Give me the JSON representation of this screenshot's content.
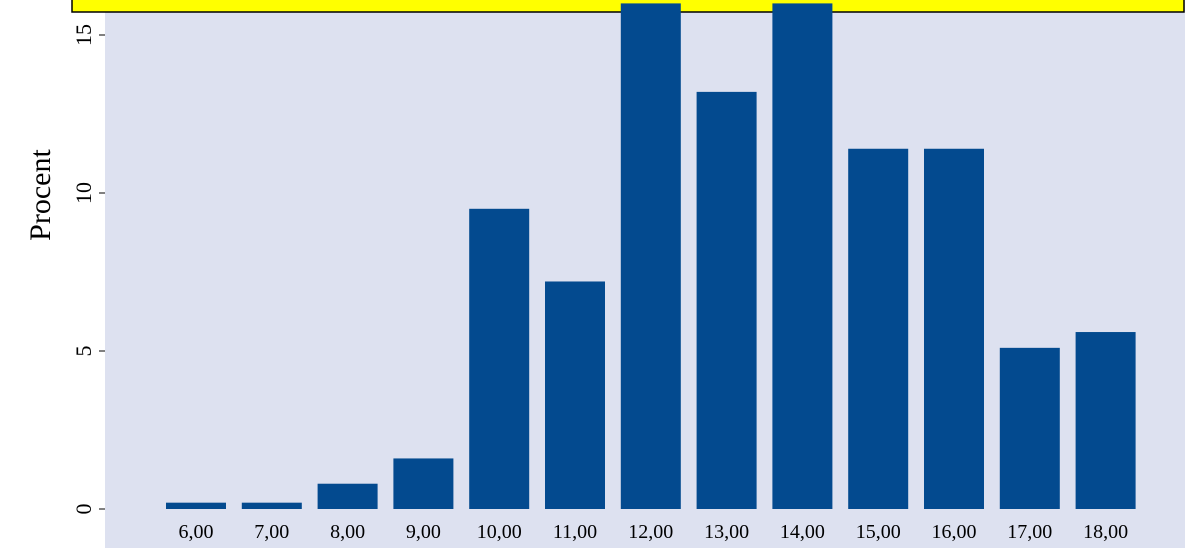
{
  "chart_data": {
    "type": "bar",
    "categories": [
      "6,00",
      "7,00",
      "8,00",
      "9,00",
      "10,00",
      "11,00",
      "12,00",
      "13,00",
      "14,00",
      "15,00",
      "16,00",
      "17,00",
      "18,00"
    ],
    "values": [
      0.2,
      0.2,
      0.8,
      1.6,
      9.5,
      7.2,
      16.0,
      13.2,
      16.0,
      11.4,
      11.4,
      5.1,
      5.6
    ],
    "title": "",
    "xlabel": "",
    "ylabel": "Procent",
    "yticks": [
      "0",
      "5",
      "10",
      "15"
    ],
    "ylim": [
      0,
      15.7
    ],
    "bar_color": "#034a8f",
    "plot_background": "#dde1f0",
    "banner_color": "#ffff00"
  }
}
